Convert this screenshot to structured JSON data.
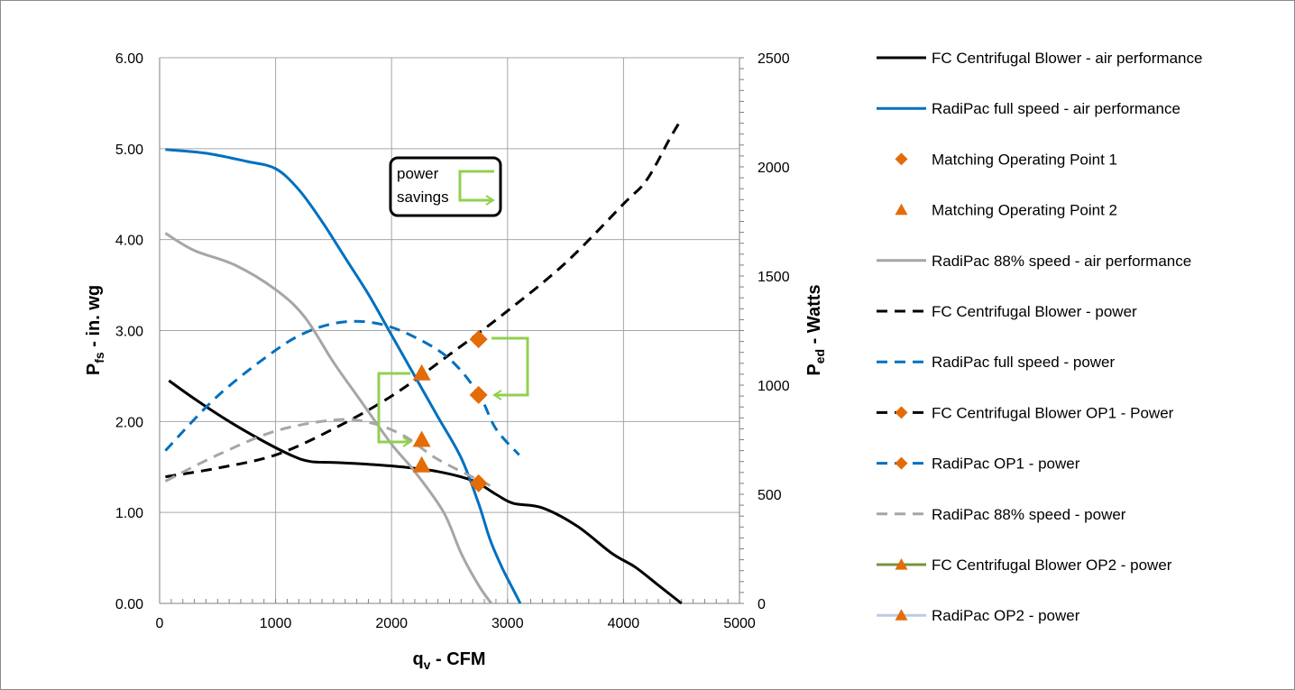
{
  "chart_data": {
    "type": "line",
    "xlabel": {
      "main": "q",
      "sub": "v",
      "rest": " - CFM"
    },
    "ylabel_left": {
      "main": "P",
      "sub": "fs",
      "rest": " - in. wg"
    },
    "ylabel_right": {
      "main": "P",
      "sub": "ed",
      "rest": " - Watts"
    },
    "xlim": [
      0,
      5000
    ],
    "ylim_left": [
      0,
      6
    ],
    "ylim_right": [
      0,
      2500
    ],
    "x_ticks": [
      "0",
      "1000",
      "2000",
      "3000",
      "4000",
      "5000"
    ],
    "y_ticks_left": [
      "0.00",
      "1.00",
      "2.00",
      "3.00",
      "4.00",
      "5.00",
      "6.00"
    ],
    "y_ticks_right": [
      "0",
      "500",
      "1000",
      "1500",
      "2000",
      "2500"
    ],
    "grid": true,
    "legend_position": "right",
    "annotation": {
      "line1": "power",
      "line2": "savings"
    },
    "series": [
      {
        "name": "FC Centrifugal Blower - air performance",
        "axis": "left",
        "style": "solid",
        "color": "#000000",
        "width": 3,
        "points": [
          [
            80,
            2.45
          ],
          [
            300,
            2.25
          ],
          [
            600,
            2.0
          ],
          [
            900,
            1.78
          ],
          [
            1150,
            1.62
          ],
          [
            1300,
            1.56
          ],
          [
            1500,
            1.55
          ],
          [
            1800,
            1.53
          ],
          [
            2100,
            1.5
          ],
          [
            2400,
            1.45
          ],
          [
            2700,
            1.35
          ],
          [
            2900,
            1.2
          ],
          [
            3050,
            1.1
          ],
          [
            3300,
            1.05
          ],
          [
            3600,
            0.85
          ],
          [
            3900,
            0.55
          ],
          [
            4100,
            0.4
          ],
          [
            4300,
            0.2
          ],
          [
            4500,
            0.0
          ]
        ]
      },
      {
        "name": "RadiPac full speed - air performance",
        "axis": "left",
        "style": "solid",
        "color": "#0070c0",
        "width": 3,
        "points": [
          [
            50,
            4.99
          ],
          [
            400,
            4.95
          ],
          [
            750,
            4.86
          ],
          [
            1000,
            4.78
          ],
          [
            1200,
            4.55
          ],
          [
            1400,
            4.2
          ],
          [
            1600,
            3.8
          ],
          [
            1800,
            3.4
          ],
          [
            2000,
            2.95
          ],
          [
            2200,
            2.5
          ],
          [
            2400,
            2.05
          ],
          [
            2600,
            1.6
          ],
          [
            2750,
            1.1
          ],
          [
            2850,
            0.7
          ],
          [
            2950,
            0.4
          ],
          [
            3050,
            0.15
          ],
          [
            3110,
            0.0
          ]
        ]
      },
      {
        "name": "Matching Operating Point 1",
        "axis": "left",
        "style": "marker",
        "marker": "diamond",
        "color": "#e36c09",
        "points": [
          [
            2750,
            1.32
          ]
        ]
      },
      {
        "name": "Matching Operating Point 2",
        "axis": "left",
        "style": "marker",
        "marker": "triangle",
        "color": "#e36c09",
        "points": [
          [
            2260,
            1.52
          ]
        ]
      },
      {
        "name": "RadiPac 88% speed - air performance",
        "axis": "left",
        "style": "solid",
        "color": "#a6a6a6",
        "width": 3,
        "points": [
          [
            50,
            4.07
          ],
          [
            300,
            3.88
          ],
          [
            650,
            3.72
          ],
          [
            1000,
            3.45
          ],
          [
            1250,
            3.15
          ],
          [
            1500,
            2.65
          ],
          [
            1750,
            2.2
          ],
          [
            2000,
            1.75
          ],
          [
            2200,
            1.45
          ],
          [
            2450,
            1.0
          ],
          [
            2600,
            0.55
          ],
          [
            2750,
            0.2
          ],
          [
            2860,
            0.0
          ]
        ]
      },
      {
        "name": "FC Centrifugal Blower - power",
        "axis": "right",
        "style": "dashed",
        "color": "#000000",
        "width": 3,
        "points": [
          [
            50,
            580
          ],
          [
            500,
            620
          ],
          [
            1000,
            680
          ],
          [
            1500,
            800
          ],
          [
            2000,
            950
          ],
          [
            2500,
            1140
          ],
          [
            3000,
            1340
          ],
          [
            3500,
            1560
          ],
          [
            4000,
            1830
          ],
          [
            4200,
            1940
          ],
          [
            4400,
            2130
          ],
          [
            4500,
            2220
          ]
        ]
      },
      {
        "name": "RadiPac full speed - power",
        "axis": "right",
        "style": "dashed",
        "color": "#0070c0",
        "width": 3,
        "points": [
          [
            50,
            700
          ],
          [
            500,
            950
          ],
          [
            1000,
            1160
          ],
          [
            1300,
            1250
          ],
          [
            1600,
            1290
          ],
          [
            1900,
            1280
          ],
          [
            2200,
            1220
          ],
          [
            2500,
            1120
          ],
          [
            2750,
            960
          ],
          [
            2900,
            800
          ],
          [
            3100,
            680
          ]
        ]
      },
      {
        "name": "FC Centrifugal Blower OP1 - Power",
        "axis": "right",
        "style": "marker",
        "marker": "diamond",
        "color": "#e36c09",
        "line_color": "#000000",
        "points": [
          [
            2750,
            1210
          ]
        ]
      },
      {
        "name": "RadiPac OP1 - power",
        "axis": "right",
        "style": "marker",
        "marker": "diamond",
        "color": "#e36c09",
        "line_color": "#0070c0",
        "points": [
          [
            2750,
            955
          ]
        ]
      },
      {
        "name": "RadiPac 88% speed - power",
        "axis": "right",
        "style": "dashed",
        "color": "#a6a6a6",
        "width": 3,
        "points": [
          [
            50,
            560
          ],
          [
            500,
            680
          ],
          [
            1000,
            790
          ],
          [
            1500,
            840
          ],
          [
            1800,
            830
          ],
          [
            2100,
            770
          ],
          [
            2400,
            660
          ],
          [
            2850,
            540
          ]
        ]
      },
      {
        "name": "FC Centrifugal Blower OP2 - power",
        "axis": "right",
        "style": "marker",
        "marker": "triangle",
        "color": "#e36c09",
        "line_color": "#77933c",
        "points": [
          [
            2260,
            1055
          ]
        ]
      },
      {
        "name": "RadiPac OP2 - power",
        "axis": "right",
        "style": "marker",
        "marker": "triangle",
        "color": "#e36c09",
        "line_color": "#b9cde5",
        "points": [
          [
            2260,
            750
          ]
        ]
      }
    ]
  }
}
